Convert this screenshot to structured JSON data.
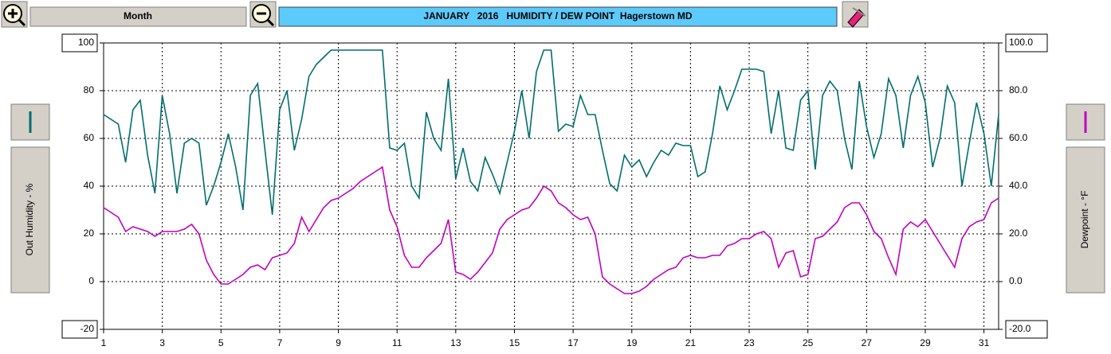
{
  "toolbar": {
    "range_button": "Month"
  },
  "chart_data": {
    "type": "line",
    "title": "JANUARY   2016   HUMIDITY / DEW POINT  Hagerstown MD",
    "ylabel": "Out Humidity - %",
    "y2label": "Dewpoint - °F",
    "x": [
      1,
      1.25,
      1.5,
      1.75,
      2,
      2.25,
      2.5,
      2.75,
      3,
      3.25,
      3.5,
      3.75,
      4,
      4.25,
      4.5,
      4.75,
      5,
      5.25,
      5.5,
      5.75,
      6,
      6.25,
      6.5,
      6.75,
      7,
      7.25,
      7.5,
      7.75,
      8,
      8.25,
      8.5,
      8.75,
      9,
      9.25,
      9.5,
      9.75,
      10,
      10.25,
      10.5,
      10.75,
      11,
      11.25,
      11.5,
      11.75,
      12,
      12.25,
      12.5,
      12.75,
      13,
      13.25,
      13.5,
      13.75,
      14,
      14.25,
      14.5,
      14.75,
      15,
      15.25,
      15.5,
      15.75,
      16,
      16.25,
      16.5,
      16.75,
      17,
      17.25,
      17.5,
      17.75,
      18,
      18.25,
      18.5,
      18.75,
      19,
      19.25,
      19.5,
      19.75,
      20,
      20.25,
      20.5,
      20.75,
      21,
      21.25,
      21.5,
      21.75,
      22,
      22.25,
      22.5,
      22.75,
      23,
      23.25,
      23.5,
      23.75,
      24,
      24.25,
      24.5,
      24.75,
      25,
      25.25,
      25.5,
      25.75,
      26,
      26.25,
      26.5,
      26.75,
      27,
      27.25,
      27.5,
      27.75,
      28,
      28.25,
      28.5,
      28.75,
      29,
      29.25,
      29.5,
      29.75,
      30,
      30.25,
      30.5,
      30.75,
      31,
      31.25,
      31.5
    ],
    "series": [
      {
        "color": "#006e6e",
        "values": [
          70,
          68,
          66,
          50,
          72,
          76,
          53,
          37,
          78,
          62,
          37,
          58,
          60,
          58,
          32,
          40,
          50,
          62,
          48,
          30,
          78,
          83,
          55,
          28,
          72,
          80,
          55,
          68,
          86,
          91,
          94,
          97,
          97,
          97,
          97,
          97,
          97,
          97,
          97,
          56,
          55,
          58,
          40,
          35,
          71,
          60,
          55,
          85,
          43,
          56,
          42,
          38,
          52,
          45,
          37,
          50,
          63,
          80,
          60,
          88,
          97,
          97,
          63,
          66,
          65,
          78,
          70,
          70,
          55,
          41,
          38,
          53,
          48,
          51,
          44,
          50,
          55,
          53,
          58,
          57,
          57,
          44,
          46,
          62,
          82,
          72,
          80,
          89,
          89,
          89,
          88,
          62,
          80,
          56,
          55,
          76,
          80,
          47,
          78,
          84,
          80,
          60,
          47,
          84,
          65,
          52,
          62,
          85,
          78,
          56,
          78,
          86,
          75,
          48,
          60,
          82,
          75,
          40,
          58,
          75,
          62,
          40,
          70
        ]
      },
      {
        "color": "#c000c0",
        "axis": "y2",
        "values": [
          31,
          29,
          27,
          21,
          23,
          22,
          21,
          19,
          21,
          21,
          21,
          22,
          24,
          20,
          9,
          3,
          -1,
          -1,
          1,
          3,
          6,
          7,
          5,
          10,
          11,
          12,
          16,
          27,
          21,
          26,
          31,
          34,
          35,
          37,
          39,
          42,
          44,
          46,
          48,
          30,
          23,
          11,
          6,
          6,
          10,
          13,
          16,
          26,
          4,
          3,
          1,
          4,
          8,
          12,
          22,
          26,
          28,
          30,
          31,
          35,
          40,
          38,
          33,
          31,
          28,
          26,
          27,
          20,
          2,
          -1,
          -3,
          -5,
          -5,
          -4,
          -2,
          1,
          3,
          5,
          6,
          10,
          11,
          10,
          10,
          11,
          11,
          15,
          16,
          18,
          18,
          20,
          21,
          18,
          6,
          12,
          13,
          2,
          3,
          18,
          19,
          22,
          25,
          31,
          33,
          33,
          28,
          21,
          18,
          10,
          3,
          22,
          25,
          23,
          26,
          21,
          16,
          11,
          6,
          18,
          23,
          25,
          26,
          33,
          35
        ]
      }
    ],
    "xlim": [
      1,
      31.5
    ],
    "xticks": [
      1,
      3,
      5,
      7,
      9,
      11,
      13,
      15,
      17,
      19,
      21,
      23,
      25,
      27,
      29,
      31
    ],
    "ylim": [
      -20,
      100
    ],
    "yticks": [
      -20,
      0,
      20,
      40,
      60,
      80,
      100
    ],
    "y2lim": [
      -20,
      100
    ],
    "y2ticks": [
      {
        "value": -20,
        "label": "-20.0"
      },
      {
        "value": 0,
        "label": "0.0"
      },
      {
        "value": 20,
        "label": "20.0"
      },
      {
        "value": 40,
        "label": "40.0"
      },
      {
        "value": 60,
        "label": "60.0"
      },
      {
        "value": 80,
        "label": "80.0"
      },
      {
        "value": 100,
        "label": "100.0"
      }
    ],
    "grid": true
  }
}
